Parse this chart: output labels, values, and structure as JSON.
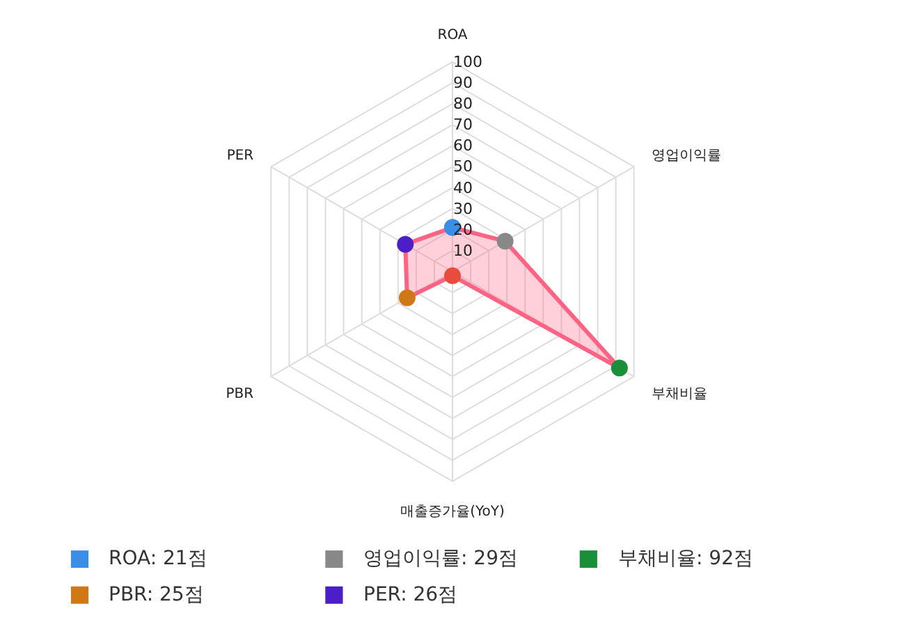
{
  "chart_data": {
    "type": "radar",
    "categories": [
      "ROA",
      "영업이익률",
      "부채비율",
      "매출증가율(YoY)",
      "PBR",
      "PER"
    ],
    "ylim": [
      0,
      100
    ],
    "yticks": [
      10,
      20,
      30,
      40,
      50,
      60,
      70,
      80,
      90,
      100
    ],
    "grid": true,
    "marker": "circle",
    "series": [
      {
        "color": "#ff6384",
        "values": [
          21,
          29,
          92,
          2,
          25,
          26
        ],
        "colors": [
          "#3a8ee6",
          "#888888",
          "#1a8f3a",
          "#e84c3c",
          "#d07818",
          "#4c1ec8"
        ]
      }
    ],
    "annotations": [
      "ROA: 21점",
      "영업이익률: 29점",
      "부채비율: 92점",
      "PBR: 25점",
      "PER: 26점"
    ]
  }
}
